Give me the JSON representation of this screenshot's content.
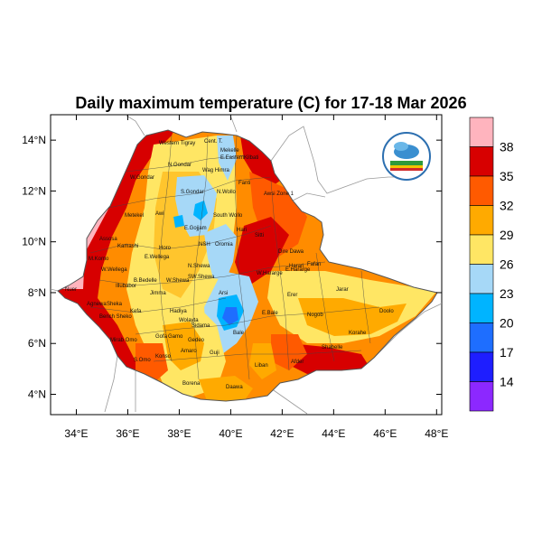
{
  "title": "Daily maximum temperature (C) for 17-18 Mar 2026",
  "map": {
    "lat_labels": [
      "14°N",
      "12°N",
      "10°N",
      "8°N",
      "6°N",
      "4°N"
    ],
    "lon_labels": [
      "34°E",
      "36°E",
      "38°E",
      "40°E",
      "42°E",
      "44°E",
      "46°E",
      "48°E"
    ],
    "lat_values": [
      14,
      12,
      10,
      8,
      6,
      4
    ],
    "lon_values": [
      34,
      36,
      38,
      40,
      42,
      44,
      46,
      48
    ],
    "lon_range": [
      33,
      48.2
    ],
    "lat_range": [
      3.2,
      15
    ]
  },
  "colorbar": {
    "labels": [
      "38",
      "35",
      "32",
      "29",
      "26",
      "23",
      "20",
      "17",
      "14"
    ],
    "colors": [
      "#ffb4be",
      "#d70000",
      "#ff5a00",
      "#ffaa00",
      "#ffe664",
      "#a6d8f7",
      "#00b4ff",
      "#1e6eff",
      "#1e1eff",
      "#8c28ff"
    ]
  },
  "regions": [
    "Western Tigray",
    "Cent. T.",
    "Mekelle",
    "E.Eastern",
    "Kilbati",
    "W.Gondar",
    "N.Gondar",
    "S.Gondar",
    "Wag Himra",
    "N.Wollo",
    "Fanti",
    "Awsi Zone 1",
    "Metekel",
    "Awi",
    "E.Gojjam",
    "South Wollo",
    "Hari",
    "Sitti",
    "Assosa",
    "Kamashi",
    "NSH",
    "Oromia",
    "W.Wellega",
    "E.Wellega",
    "Horo",
    "N.Shewa",
    "Dire Dawa",
    "Harari",
    "Fafan",
    "M.Komo",
    "Illubabor",
    "B.Bedelle",
    "W.Shewa",
    "W.Hararge",
    "E.Hararge",
    "Nuer",
    "Jimma",
    "SW.Shewa",
    "Arsi",
    "Erer",
    "Jarar",
    "Agnewa",
    "Sheka",
    "Bench Sheko",
    "Kefa",
    "Hadiya",
    "Wolayta",
    "Sidama",
    "E.Bale",
    "Nogob",
    "Doolo",
    "Mirab Omo",
    "Gofa",
    "Gamo",
    "Gedeo",
    "Bale",
    "Korahe",
    "S.Omo",
    "Konso",
    "Amaro",
    "Guji",
    "Shabelle",
    "Liban",
    "Afder",
    "Borena",
    "Daawa"
  ]
}
